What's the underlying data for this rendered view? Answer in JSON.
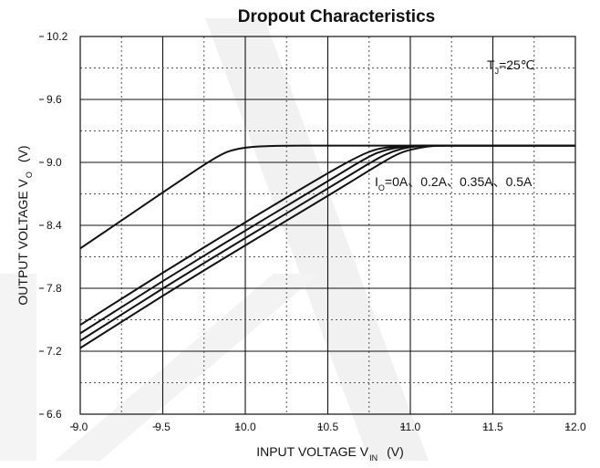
{
  "chart_data": {
    "type": "line",
    "title": "Dropout Characteristics",
    "xlabel": {
      "text": "INPUT VOLTAGE V",
      "sub": "IN",
      "unit": "(V)"
    },
    "ylabel": {
      "text": "OUTPUT VOLTAGE V",
      "sub": "O",
      "unit": "(V)"
    },
    "xlim": [
      9.0,
      12.0
    ],
    "ylim": [
      6.6,
      10.2
    ],
    "x_ticks": [
      "9.0",
      "9.5",
      "10.0",
      "10.5",
      "11.0",
      "11.5",
      "12.0"
    ],
    "y_ticks": [
      "6.6",
      "7.2",
      "7.8",
      "8.4",
      "9.0",
      "9.6",
      "10.2"
    ],
    "x_tick_values": [
      9.0,
      9.5,
      10.0,
      10.5,
      11.0,
      11.5,
      12.0
    ],
    "y_tick_values": [
      6.6,
      7.2,
      7.8,
      8.4,
      9.0,
      9.6,
      10.2
    ],
    "minor_grid": "dotted",
    "major_grid": "solid",
    "series": [
      {
        "x": [
          9.0,
          9.3,
          9.6,
          9.85,
          9.95,
          10.05,
          10.2,
          10.5,
          11.0,
          12.0
        ],
        "y": [
          8.18,
          8.5,
          8.82,
          9.08,
          9.13,
          9.15,
          9.16,
          9.16,
          9.16,
          9.16
        ]
      },
      {
        "x": [
          9.0,
          9.5,
          10.0,
          10.5,
          10.7,
          10.8,
          10.9,
          11.0,
          11.2,
          12.0
        ],
        "y": [
          7.45,
          7.95,
          8.43,
          8.9,
          9.07,
          9.13,
          9.15,
          9.16,
          9.16,
          9.16
        ]
      },
      {
        "x": [
          9.0,
          9.5,
          10.0,
          10.5,
          10.75,
          10.85,
          10.95,
          11.05,
          11.2,
          12.0
        ],
        "y": [
          7.37,
          7.87,
          8.35,
          8.82,
          9.06,
          9.12,
          9.15,
          9.16,
          9.16,
          9.16
        ]
      },
      {
        "x": [
          9.0,
          9.5,
          10.0,
          10.5,
          10.8,
          10.9,
          11.0,
          11.1,
          11.25,
          12.0
        ],
        "y": [
          7.3,
          7.8,
          8.28,
          8.75,
          9.04,
          9.11,
          9.15,
          9.16,
          9.16,
          9.16
        ]
      },
      {
        "x": [
          9.0,
          9.5,
          10.0,
          10.5,
          10.85,
          10.95,
          11.05,
          11.15,
          11.3,
          12.0
        ],
        "y": [
          7.23,
          7.73,
          8.21,
          8.68,
          9.02,
          9.1,
          9.14,
          9.16,
          9.16,
          9.16
        ]
      }
    ],
    "annotations": {
      "temp": {
        "base": "T",
        "sub": "J",
        "rest": "=25℃"
      },
      "currents": {
        "base": "I",
        "sub": "O",
        "rest": "=0A、0.2A、0.35A、0.5A"
      }
    }
  }
}
